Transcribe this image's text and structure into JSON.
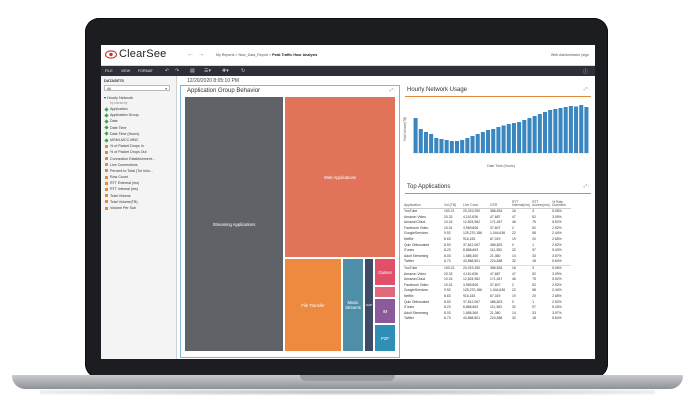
{
  "app": {
    "logo_text": "ClearSee",
    "breadcrumb": {
      "path": "My Reports  >  New_Data_Report  >",
      "current": "Peak Traffic Hour Analysis"
    },
    "user": "Web Administrator (sign"
  },
  "menubar": {
    "items": [
      "FILE",
      "VIEW",
      "FORMAT"
    ],
    "toolbar_icons": [
      "undo-icon",
      "redo-icon",
      "save-icon",
      "chart-type-icon",
      "add-icon",
      "refresh-icon",
      "info-icon"
    ]
  },
  "sidebar": {
    "header": "DATASETS",
    "select_value": "All",
    "group": "Hourly Network",
    "group_sub": "by hierarchy",
    "items": [
      {
        "label": "Application",
        "kind": "green"
      },
      {
        "label": "Application Group",
        "kind": "green"
      },
      {
        "label": "Date",
        "kind": "green"
      },
      {
        "label": "Date Time",
        "kind": "green"
      },
      {
        "label": "Date Time (Hours)",
        "kind": "green"
      },
      {
        "label": "MGMI-MCC-MNC",
        "kind": "green"
      },
      {
        "label": "% of Packet Drops In",
        "kind": "orange"
      },
      {
        "label": "% of Packet Drops Out",
        "kind": "orange"
      },
      {
        "label": "Connection Establishment...",
        "kind": "orange"
      },
      {
        "label": "Live Connections",
        "kind": "orange"
      },
      {
        "label": "Percent to Total (Tot Volu...",
        "kind": "orange"
      },
      {
        "label": "Row Count",
        "kind": "orange"
      },
      {
        "label": "RTT External (ms)",
        "kind": "orange"
      },
      {
        "label": "RTT Internal (ms)",
        "kind": "orange"
      },
      {
        "label": "Total Volume",
        "kind": "orange"
      },
      {
        "label": "Total Volume(TB)",
        "kind": "orange"
      },
      {
        "label": "Volume Per Sub",
        "kind": "orange"
      }
    ]
  },
  "content": {
    "datestamp": "12/20/2020 8:05:10 PM",
    "treemap_panel": {
      "title": "Application Group Behavior",
      "tiles": [
        {
          "label": "Streaming Applications",
          "color": "#5f6368"
        },
        {
          "label": "Web Applications",
          "color": "#e0735a"
        },
        {
          "label": "File Transfer",
          "color": "#ee8a3f"
        },
        {
          "label": "Music Streams",
          "color": "#4e8ea7"
        },
        {
          "label": "VoIP",
          "color": "#3f4a66"
        },
        {
          "label": "Games",
          "color": "#e0506a"
        },
        {
          "label": "",
          "color": "#e06a7c"
        },
        {
          "label": "IM",
          "color": "#8a5a9a"
        },
        {
          "label": "P2P",
          "color": "#2f8fb7"
        }
      ]
    },
    "hourly_panel": {
      "title": "Hourly Network Usage",
      "ylabel": "Total Volume(TB)",
      "xlabel": "Date Time (Hours)"
    },
    "top_apps": {
      "title": "Top Applications",
      "columns": [
        "Application",
        "Vol.(TB)",
        "Live Conn.",
        "CER",
        "RTT Internal(ms)",
        "RTT Access(ms)",
        "% Rate Downlink"
      ],
      "rows": [
        [
          "YouTube",
          "100.21",
          "20,019,250",
          "386.834",
          "16",
          "3",
          "5.06%"
        ],
        [
          "Amazon Video",
          "20.32",
          "4,110,636",
          "47,687",
          "47",
          "52",
          "3.09%"
        ],
        [
          "AmazonCloud",
          "10.24",
          "12,824,962",
          "171,457",
          "46",
          "75",
          "5.52%"
        ],
        [
          "Facebook Video",
          "10.01",
          "3,969,806",
          "37,607",
          "2",
          "52",
          "2.92%"
        ],
        [
          "GoogleServices",
          "9.52",
          "125,270,186",
          "1,044,636",
          "22",
          "58",
          "2.44%"
        ],
        [
          "Netflix",
          "8.63",
          "916,153",
          "67,019",
          "19",
          "20",
          "2.65%"
        ],
        [
          "Quic Obfuscated",
          "8.53",
          "37,812,067",
          "486,823",
          "0",
          "1",
          "2.52%"
        ],
        [
          "iTunes",
          "8.23",
          "8,868,663",
          "111,383",
          "32",
          "97",
          "5.43%"
        ],
        [
          "Adult Streaming",
          "8.03",
          "1,685,360",
          "21,360",
          "14",
          "33",
          "3.57%"
        ],
        [
          "Twitter",
          "6.73",
          "43,868,801",
          "224,838",
          "32",
          "18",
          "5.64%"
        ],
        [
          "YouTube",
          "100.21",
          "20,019,250",
          "386.834",
          "16",
          "3",
          "5.06%"
        ],
        [
          "Amazon Video",
          "20.32",
          "4,110,636",
          "47,687",
          "47",
          "52",
          "3.09%"
        ],
        [
          "AmazonCloud",
          "10.24",
          "12,824,962",
          "171,457",
          "46",
          "75",
          "5.52%"
        ],
        [
          "Facebook Video",
          "10.01",
          "3,969,806",
          "37,607",
          "2",
          "52",
          "2.92%"
        ],
        [
          "GoogleServices",
          "9.52",
          "125,270,186",
          "1,044,636",
          "22",
          "58",
          "2.44%"
        ],
        [
          "Netflix",
          "8.63",
          "916,153",
          "67,019",
          "19",
          "20",
          "2.65%"
        ],
        [
          "Quic Obfuscated",
          "8.53",
          "37,812,067",
          "486,823",
          "0",
          "1",
          "2.52%"
        ],
        [
          "iTunes",
          "8.23",
          "8,868,663",
          "111,383",
          "32",
          "97",
          "5.43%"
        ],
        [
          "Adult Streaming",
          "8.03",
          "1,685,360",
          "21,360",
          "14",
          "33",
          "3.57%"
        ],
        [
          "Twitter",
          "6.73",
          "43,868,801",
          "224,838",
          "32",
          "18",
          "5.64%"
        ]
      ]
    }
  },
  "chart_data": {
    "type": "bar",
    "title": "Hourly Network Usage",
    "xlabel": "Date Time (Hours)",
    "ylabel": "Total Volume(TB)",
    "ylim": [
      0,
      100
    ],
    "bar_color": "#3a86c0",
    "categories": [
      "1",
      "2",
      "3",
      "4",
      "5",
      "6",
      "7",
      "8",
      "9",
      "10",
      "11",
      "12",
      "13",
      "14",
      "15",
      "16",
      "17",
      "18",
      "19",
      "20",
      "21",
      "22",
      "23",
      "24",
      "25",
      "26",
      "27",
      "28",
      "29",
      "30",
      "31",
      "32",
      "33",
      "34"
    ],
    "values": [
      70,
      48,
      42,
      38,
      30,
      28,
      26,
      24,
      24,
      26,
      30,
      34,
      38,
      42,
      46,
      48,
      52,
      55,
      58,
      60,
      62,
      66,
      70,
      74,
      78,
      82,
      86,
      88,
      90,
      92,
      94,
      93,
      96,
      92
    ]
  }
}
